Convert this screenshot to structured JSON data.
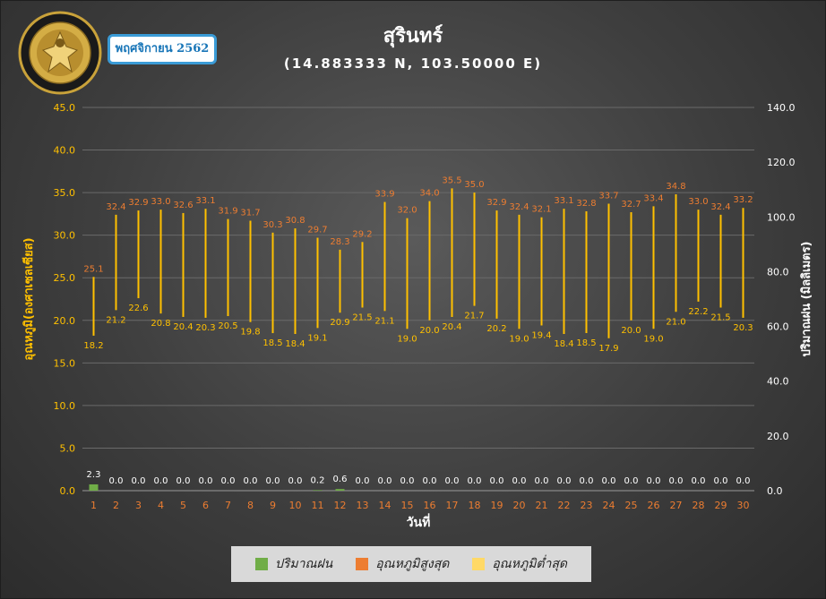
{
  "title": "สุรินทร์",
  "subtitle": "(14.883333 N, 103.50000 E)",
  "month_badge": "พฤศจิกายน 2562",
  "logo_text": "กรมอุตุนิยมวิทยา METEOROLOGICAL DEPARTMENT",
  "colors": {
    "rain": "#70ad47",
    "max": "#ed7d31",
    "min": "#ffc000",
    "axis_left": "#ffc000",
    "axis_right": "#ffffff",
    "x_tick": "#ed7d31"
  },
  "chart_data": {
    "type": "bar",
    "xlabel": "วันที่",
    "ylabel_left": "อุณหภูมิ(องศาเซลเซียส)",
    "ylabel_right": "ปริมาณฝน (มิลลิเมตร)",
    "ylim_left": [
      0,
      45
    ],
    "ylim_right": [
      0,
      140
    ],
    "yticks_left": [
      "0.0",
      "5.0",
      "10.0",
      "15.0",
      "20.0",
      "25.0",
      "30.0",
      "35.0",
      "40.0",
      "45.0"
    ],
    "yticks_right": [
      "0.0",
      "20.0",
      "40.0",
      "60.0",
      "80.0",
      "100.0",
      "120.0",
      "140.0"
    ],
    "grid": true,
    "legend_position": "bottom",
    "categories": [
      "1",
      "2",
      "3",
      "4",
      "5",
      "6",
      "7",
      "8",
      "9",
      "10",
      "11",
      "12",
      "13",
      "14",
      "15",
      "16",
      "17",
      "18",
      "19",
      "20",
      "21",
      "22",
      "23",
      "24",
      "25",
      "26",
      "27",
      "28",
      "29",
      "30"
    ],
    "series": [
      {
        "name": "ปริมาณฝน",
        "axis": "right",
        "values": [
          2.3,
          0.0,
          0.0,
          0.0,
          0.0,
          0.0,
          0.0,
          0.0,
          0.0,
          0.0,
          0.2,
          0.6,
          0.0,
          0.0,
          0.0,
          0.0,
          0.0,
          0.0,
          0.0,
          0.0,
          0.0,
          0.0,
          0.0,
          0.0,
          0.0,
          0.0,
          0.0,
          0.0,
          0.0,
          0.0
        ]
      },
      {
        "name": "อุณหภูมิสูงสุด",
        "axis": "left",
        "values": [
          25.1,
          32.4,
          32.9,
          33.0,
          32.6,
          33.1,
          31.9,
          31.7,
          30.3,
          30.8,
          29.7,
          28.3,
          29.2,
          33.9,
          32.0,
          34.0,
          35.5,
          35.0,
          32.9,
          32.4,
          32.1,
          33.1,
          32.8,
          33.7,
          32.7,
          33.4,
          34.8,
          33.0,
          32.4,
          33.2
        ]
      },
      {
        "name": "อุณหภูมิต่ำสุด",
        "axis": "left",
        "values": [
          18.2,
          21.2,
          22.6,
          20.8,
          20.4,
          20.3,
          20.5,
          19.8,
          18.5,
          18.4,
          19.1,
          20.9,
          21.5,
          21.1,
          19.0,
          20.0,
          20.4,
          21.7,
          20.2,
          19.0,
          19.4,
          18.4,
          18.5,
          17.9,
          20.0,
          19.0,
          21.0,
          22.2,
          21.5,
          20.3
        ]
      }
    ]
  }
}
